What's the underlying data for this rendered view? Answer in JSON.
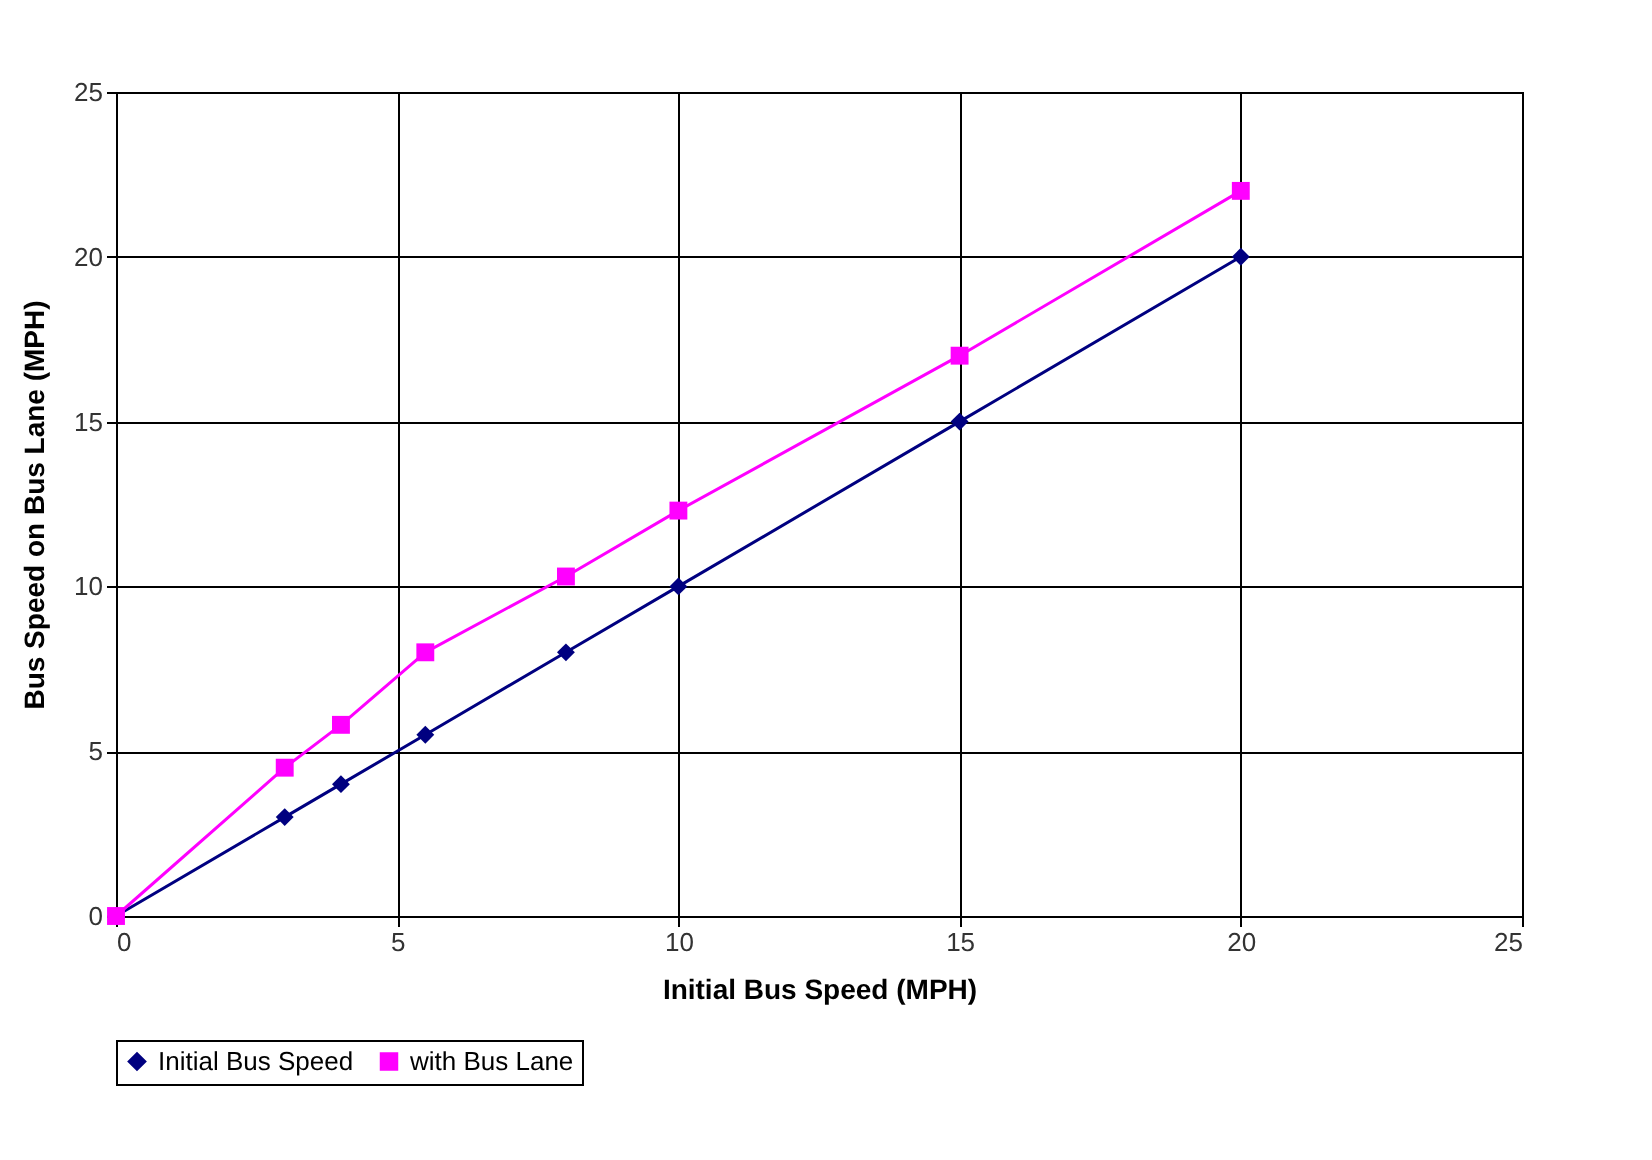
{
  "chart_data": {
    "type": "line",
    "xlabel": "Initial Bus Speed (MPH)",
    "ylabel": "Bus Speed on Bus Lane (MPH)",
    "x": [
      0,
      3,
      4,
      5.5,
      8,
      10,
      15,
      20
    ],
    "series": [
      {
        "name": "Initial Bus Speed",
        "color": "#000080",
        "marker": "diamond",
        "values": [
          0,
          3,
          4,
          5.5,
          8,
          10,
          15,
          20
        ]
      },
      {
        "name": "with Bus Lane",
        "color": "#ff00ff",
        "marker": "square",
        "values": [
          0,
          4.5,
          5.8,
          8,
          10.3,
          12.3,
          17,
          22
        ]
      }
    ],
    "xlim": [
      0,
      25
    ],
    "xticks": [
      0,
      5,
      10,
      15,
      20,
      25
    ],
    "ylim": [
      0,
      25
    ],
    "yticks": [
      0,
      5,
      10,
      15,
      20,
      25
    ],
    "grid": true,
    "legend": "bottom",
    "line_style": "solid"
  }
}
